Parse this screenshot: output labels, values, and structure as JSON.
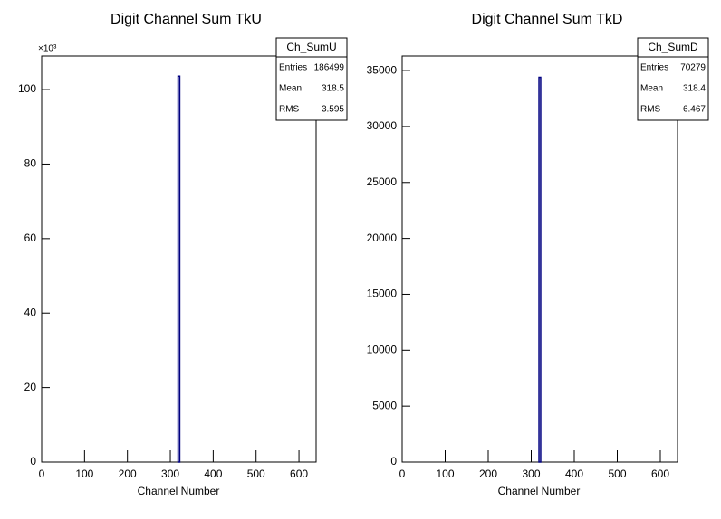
{
  "chart_data": [
    {
      "type": "histogram",
      "title": "Digit Channel Sum TkU",
      "x_label": "Channel Number",
      "bins": [
        318,
        322
      ],
      "counts": [
        103600
      ],
      "color": "#000080",
      "xlim": [
        0,
        640
      ],
      "ylim": [
        0,
        109000
      ],
      "xticks": [
        0,
        100,
        200,
        300,
        400,
        500,
        600
      ],
      "yticks": [
        {
          "value": 0,
          "label": "0"
        },
        {
          "value": 20000,
          "label": "20"
        },
        {
          "value": 40000,
          "label": "40"
        },
        {
          "value": 60000,
          "label": "60"
        },
        {
          "value": 80000,
          "label": "80"
        },
        {
          "value": 100000,
          "label": "100"
        }
      ],
      "y_multiplier": "×10³",
      "stats": {
        "title": "Ch_SumU",
        "rows": [
          {
            "label": "Entries",
            "value": 186499
          },
          {
            "label": "Mean",
            "value": 318.5
          },
          {
            "label": "RMS",
            "value": 3.595
          }
        ]
      }
    },
    {
      "type": "histogram",
      "title": "Digit Channel Sum TkD",
      "x_label": "Channel Number",
      "bins": [
        318,
        322
      ],
      "counts": [
        34400
      ],
      "color": "#000080",
      "xlim": [
        0,
        640
      ],
      "ylim": [
        0,
        36300
      ],
      "xticks": [
        0,
        100,
        200,
        300,
        400,
        500,
        600
      ],
      "yticks": [
        0,
        5000,
        10000,
        15000,
        20000,
        25000,
        30000,
        35000
      ],
      "stats": {
        "title": "Ch_SumD",
        "rows": [
          {
            "label": "Entries",
            "value": 70279
          },
          {
            "label": "Mean",
            "value": 318.4
          },
          {
            "label": "RMS",
            "value": 6.467
          }
        ]
      }
    }
  ]
}
